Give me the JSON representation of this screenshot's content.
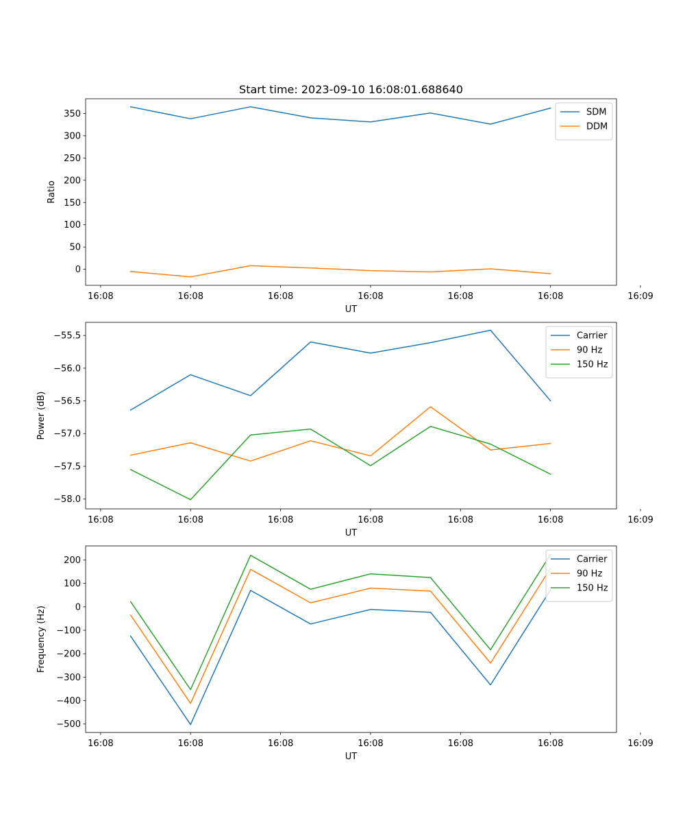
{
  "title": "Start time: 2023-09-10 16:08:01.688640",
  "colors": {
    "blue": "#1f77b4",
    "orange": "#ff7f0e",
    "green": "#2ca02c"
  },
  "chart_data": [
    {
      "type": "line",
      "title": "Start time: 2023-09-10 16:08:01.688640",
      "xlabel": "UT",
      "ylabel": "Ratio",
      "x": [
        1,
        2,
        3,
        4,
        5,
        6,
        7,
        8
      ],
      "xlim": [
        0.25,
        9.1
      ],
      "x_ticks": [
        0.5,
        2,
        3.5,
        5,
        6.5,
        8,
        9.5
      ],
      "x_tick_labels": [
        "16:08",
        "16:08",
        "16:08",
        "16:08",
        "16:08",
        "16:08",
        "16:09"
      ],
      "ylim": [
        -36,
        383
      ],
      "y_ticks": [
        0,
        50,
        100,
        150,
        200,
        250,
        300,
        350
      ],
      "y_tick_labels": [
        "0",
        "50",
        "100",
        "150",
        "200",
        "250",
        "300",
        "350"
      ],
      "legend_position": "top-right",
      "series": [
        {
          "name": "SDM",
          "color": "#1f77b4",
          "values": [
            365,
            338,
            365,
            340,
            331,
            351,
            326,
            362
          ]
        },
        {
          "name": "DDM",
          "color": "#ff7f0e",
          "values": [
            -5,
            -17,
            8,
            3,
            -3,
            -6,
            1,
            -10
          ]
        }
      ]
    },
    {
      "type": "line",
      "xlabel": "UT",
      "ylabel": "Power (dB)",
      "x": [
        1,
        2,
        3,
        4,
        5,
        6,
        7,
        8
      ],
      "xlim": [
        0.25,
        9.1
      ],
      "x_ticks": [
        0.5,
        2,
        3.5,
        5,
        6.5,
        8,
        9.5
      ],
      "x_tick_labels": [
        "16:08",
        "16:08",
        "16:08",
        "16:08",
        "16:08",
        "16:08",
        "16:09"
      ],
      "ylim": [
        -58.15,
        -55.3
      ],
      "y_ticks": [
        -58.0,
        -57.5,
        -57.0,
        -56.5,
        -56.0,
        -55.5
      ],
      "y_tick_labels": [
        "−58.0",
        "−57.5",
        "−57.0",
        "−56.5",
        "−56.0",
        "−55.5"
      ],
      "legend_position": "top-right",
      "series": [
        {
          "name": "Carrier",
          "color": "#1f77b4",
          "values": [
            -56.64,
            -56.1,
            -56.42,
            -55.6,
            -55.77,
            -55.61,
            -55.42,
            -56.5
          ]
        },
        {
          "name": "90 Hz",
          "color": "#ff7f0e",
          "values": [
            -57.33,
            -57.14,
            -57.42,
            -57.11,
            -57.34,
            -56.59,
            -57.25,
            -57.15
          ]
        },
        {
          "name": "150 Hz",
          "color": "#2ca02c",
          "values": [
            -57.55,
            -58.01,
            -57.02,
            -56.93,
            -57.49,
            -56.89,
            -57.16,
            -57.62
          ]
        }
      ]
    },
    {
      "type": "line",
      "xlabel": "UT",
      "ylabel": "Frequency (Hz)",
      "x": [
        1,
        2,
        3,
        4,
        5,
        6,
        7,
        8
      ],
      "xlim": [
        0.25,
        9.1
      ],
      "x_ticks": [
        0.5,
        2,
        3.5,
        5,
        6.5,
        8,
        9.5
      ],
      "x_tick_labels": [
        "16:08",
        "16:08",
        "16:08",
        "16:08",
        "16:08",
        "16:08",
        "16:09"
      ],
      "ylim": [
        -536,
        260
      ],
      "y_ticks": [
        -500,
        -400,
        -300,
        -200,
        -100,
        0,
        100,
        200
      ],
      "y_tick_labels": [
        "−500",
        "−400",
        "−300",
        "−200",
        "−100",
        "0",
        "100",
        "200"
      ],
      "legend_position": "top-right",
      "series": [
        {
          "name": "Carrier",
          "color": "#1f77b4",
          "values": [
            -125,
            -502,
            70,
            -73,
            -11,
            -23,
            -333,
            73
          ]
        },
        {
          "name": "90 Hz",
          "color": "#ff7f0e",
          "values": [
            -35,
            -412,
            160,
            17,
            80,
            67,
            -240,
            165
          ]
        },
        {
          "name": "150 Hz",
          "color": "#2ca02c",
          "values": [
            22,
            -353,
            220,
            75,
            141,
            125,
            -183,
            224
          ]
        }
      ]
    }
  ]
}
